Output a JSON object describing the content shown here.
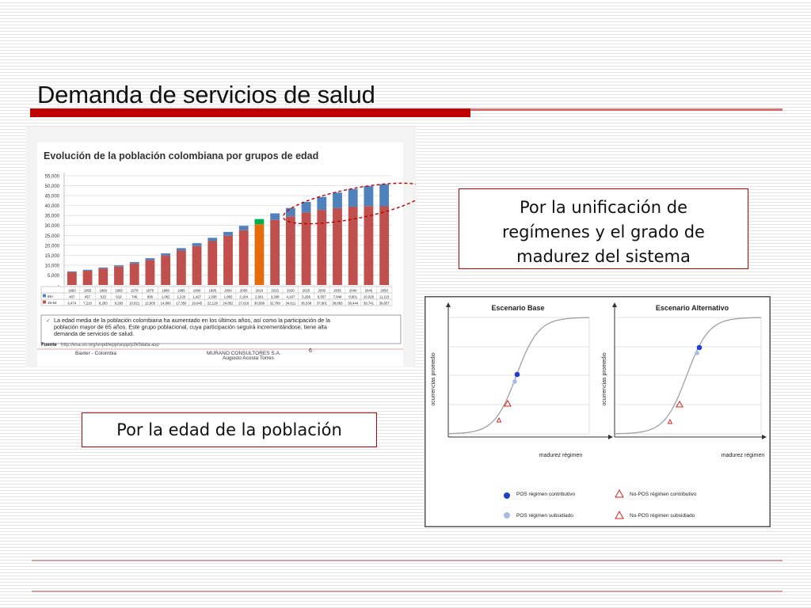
{
  "slide": {
    "title": "Demanda de servicios de salud",
    "callout_right": [
      "Por la unificación de",
      "regímenes y el grado de",
      "madurez del sistema"
    ],
    "callout_left": "Por la edad de la población"
  },
  "colors": {
    "accent_red": "#c00000",
    "bar_red": "#c0504d",
    "bar_blue": "#4f81bd",
    "bar_orange": "#e46c0a",
    "bar_green": "#00b050"
  },
  "chart_data": [
    {
      "type": "bar",
      "title": "Evolución de la población colombiana por grupos de edad",
      "categories": [
        "1950",
        "1955",
        "1960",
        "1965",
        "1970",
        "1975",
        "1980",
        "1985",
        "1990",
        "1995",
        "2000",
        "2005",
        "2010",
        "2015",
        "2020",
        "2025",
        "2030",
        "2035",
        "2040",
        "2045",
        "2050"
      ],
      "series": [
        {
          "name": "65+",
          "values": [
            407,
            457,
            515,
            619,
            746,
            895,
            1062,
            1220,
            1427,
            1636,
            1882,
            2184,
            2601,
            3268,
            4167,
            5268,
            6557,
            7848,
            8901,
            10026,
            11115
          ],
          "labels": [
            "407",
            "457",
            "515",
            "619",
            "746",
            "895",
            "1,062",
            "1,220",
            "1,427",
            "1,636",
            "1,882",
            "2,184",
            "2,601",
            "3,268",
            "4,167",
            "5,268",
            "6,557",
            "7,848",
            "8,901",
            "10,026",
            "11,115"
          ]
        },
        {
          "name": "15-64",
          "values": [
            6474,
            7210,
            8283,
            9283,
            10821,
            12605,
            14866,
            17350,
            19645,
            22128,
            24852,
            27618,
            30589,
            32799,
            34611,
            36538,
            37801,
            38683,
            39444,
            39741,
            39657
          ],
          "labels": [
            "6,474",
            "7,210",
            "8,283",
            "9,283",
            "10,821",
            "12,605",
            "14,866",
            "17,350",
            "19,645",
            "22,128",
            "24,852",
            "27,618",
            "30,589",
            "32,799",
            "34,611",
            "36,538",
            "37,801",
            "38,683",
            "39,444",
            "39,741",
            "39,657"
          ]
        }
      ],
      "y_ticks": [
        "55,000",
        "50,000",
        "45,000",
        "40,000",
        "35,000",
        "30,000",
        "25,000",
        "20,000",
        "15,000",
        "10,000",
        "5,000",
        "-"
      ],
      "ylim": [
        0,
        55000
      ],
      "note": "La edad media de la población colombiana ha aumentado en los últimos años, así como la participación de la población mayor de 65 años. Este grupo poblacional, cuya participación seguirá incrementándose, tiene alta demanda de servicios de salud.",
      "source_label": "Fuente",
      "source_text": "http://esa.un.org/unpd/wpp/unpp/p2k0data.asp",
      "footer_left": "Baxter - Colombia",
      "footer_center_1": "MURANO CONSULTORES S.A.",
      "footer_center_2": "Augusto Acosta Torres",
      "page_number": "6"
    },
    {
      "type": "line",
      "title": "Escenario Base",
      "ylabel": "ocurrencias promedio",
      "xlabel": "madurez régimen"
    },
    {
      "type": "line",
      "title": "Escenario Alternativo",
      "ylabel": "ocurrencias promedio",
      "xlabel": "madurez régimen"
    }
  ],
  "legend": {
    "pos_contributivo": "POS régimen contributivo",
    "pos_subsidiado": "POS régimen subsidiado",
    "nopos_contributivo": "No-POS régimen contributivo",
    "nopos_subsidiado": "No-POS régimen subsidiado"
  }
}
